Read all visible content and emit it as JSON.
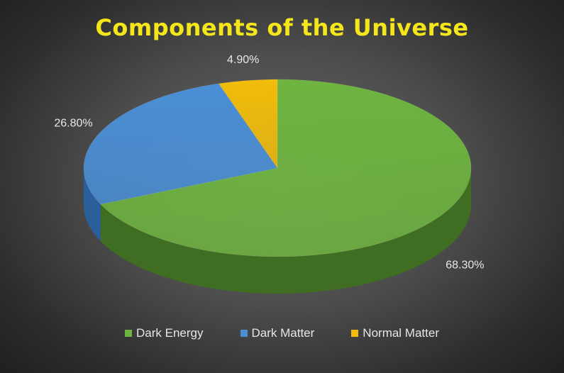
{
  "chart_data": {
    "type": "pie",
    "title": "Components of the Universe",
    "series": [
      {
        "name": "Dark Energy",
        "value": 68.3,
        "label": "68.30%",
        "color": "#6eb43f",
        "side": "#3f6e22"
      },
      {
        "name": "Dark Matter",
        "value": 26.8,
        "label": "26.80%",
        "color": "#4a8fd6",
        "side": "#2a5f99"
      },
      {
        "name": "Normal Matter",
        "value": 4.9,
        "label": "4.90%",
        "color": "#f2bd0a",
        "side": "#a57f05"
      }
    ],
    "legend_position": "bottom",
    "style": "3d"
  }
}
